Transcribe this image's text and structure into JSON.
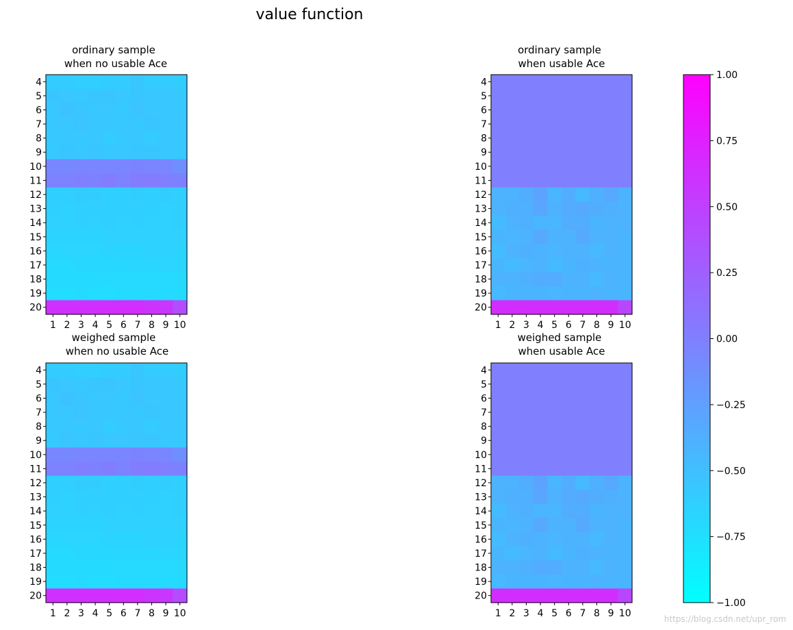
{
  "figure": {
    "suptitle": "value function",
    "watermark": "https://blog.csdn.net/upr_rom"
  },
  "colorbar": {
    "cmap": "cool",
    "vmin": -1.0,
    "vmax": 1.0,
    "ticks": [
      1.0,
      0.75,
      0.5,
      0.25,
      0.0,
      -0.25,
      -0.5,
      -0.75,
      -1.0
    ],
    "tick_labels": [
      "1.00",
      "0.75",
      "0.50",
      "0.25",
      "0.00",
      "−0.25",
      "−0.50",
      "−0.75",
      "−1.00"
    ],
    "color_low": "#00ffff",
    "color_high": "#ff00ff"
  },
  "chart_data": [
    {
      "type": "heatmap",
      "title_line1": "ordinary sample",
      "title_line2": "when no usable Ace",
      "x": [
        "1",
        "2",
        "3",
        "4",
        "5",
        "6",
        "7",
        "8",
        "9",
        "10"
      ],
      "y": [
        "4",
        "5",
        "6",
        "7",
        "8",
        "9",
        "10",
        "11",
        "12",
        "13",
        "14",
        "15",
        "16",
        "17",
        "18",
        "19",
        "20"
      ],
      "values": [
        [
          -0.6,
          -0.6,
          -0.62,
          -0.62,
          -0.6,
          -0.6,
          -0.55,
          -0.6,
          -0.6,
          -0.6
        ],
        [
          -0.55,
          -0.56,
          -0.57,
          -0.55,
          -0.55,
          -0.56,
          -0.55,
          -0.57,
          -0.56,
          -0.57
        ],
        [
          -0.57,
          -0.53,
          -0.55,
          -0.56,
          -0.56,
          -0.58,
          -0.54,
          -0.56,
          -0.57,
          -0.57
        ],
        [
          -0.57,
          -0.56,
          -0.54,
          -0.56,
          -0.57,
          -0.56,
          -0.57,
          -0.55,
          -0.56,
          -0.56
        ],
        [
          -0.58,
          -0.56,
          -0.58,
          -0.56,
          -0.6,
          -0.57,
          -0.56,
          -0.59,
          -0.56,
          -0.57
        ],
        [
          -0.58,
          -0.55,
          -0.56,
          -0.55,
          -0.56,
          -0.56,
          -0.55,
          -0.55,
          -0.57,
          -0.57
        ],
        [
          -0.06,
          -0.07,
          -0.05,
          -0.04,
          -0.05,
          -0.04,
          -0.03,
          -0.04,
          -0.06,
          -0.12
        ],
        [
          -0.02,
          -0.02,
          0.0,
          -0.01,
          0.02,
          -0.02,
          0.02,
          0.03,
          0.0,
          -0.01
        ],
        [
          -0.63,
          -0.63,
          -0.6,
          -0.61,
          -0.63,
          -0.63,
          -0.61,
          -0.63,
          -0.6,
          -0.63
        ],
        [
          -0.63,
          -0.64,
          -0.62,
          -0.63,
          -0.63,
          -0.63,
          -0.62,
          -0.63,
          -0.64,
          -0.63
        ],
        [
          -0.64,
          -0.64,
          -0.63,
          -0.64,
          -0.63,
          -0.64,
          -0.63,
          -0.64,
          -0.64,
          -0.63
        ],
        [
          -0.66,
          -0.66,
          -0.66,
          -0.66,
          -0.64,
          -0.64,
          -0.64,
          -0.64,
          -0.64,
          -0.64
        ],
        [
          -0.68,
          -0.67,
          -0.67,
          -0.67,
          -0.66,
          -0.66,
          -0.66,
          -0.65,
          -0.65,
          -0.66
        ],
        [
          -0.7,
          -0.7,
          -0.69,
          -0.69,
          -0.69,
          -0.69,
          -0.68,
          -0.68,
          -0.67,
          -0.68
        ],
        [
          -0.71,
          -0.71,
          -0.71,
          -0.71,
          -0.7,
          -0.7,
          -0.7,
          -0.7,
          -0.7,
          -0.7
        ],
        [
          -0.73,
          -0.73,
          -0.72,
          -0.73,
          -0.73,
          -0.72,
          -0.72,
          -0.72,
          -0.71,
          -0.72
        ],
        [
          0.62,
          0.62,
          0.63,
          0.63,
          0.64,
          0.64,
          0.64,
          0.6,
          0.58,
          0.4
        ]
      ]
    },
    {
      "type": "heatmap",
      "title_line1": "ordinary sample",
      "title_line2": "when usable Ace",
      "x": [
        "1",
        "2",
        "3",
        "4",
        "5",
        "6",
        "7",
        "8",
        "9",
        "10"
      ],
      "y": [
        "4",
        "5",
        "6",
        "7",
        "8",
        "9",
        "10",
        "11",
        "12",
        "13",
        "14",
        "15",
        "16",
        "17",
        "18",
        "19",
        "20"
      ],
      "values": [
        [
          0.0,
          0.0,
          0.0,
          0.0,
          0.0,
          0.0,
          0.0,
          0.0,
          0.0,
          0.0
        ],
        [
          0.0,
          0.0,
          0.0,
          0.0,
          0.0,
          0.0,
          0.0,
          0.0,
          0.0,
          0.0
        ],
        [
          0.0,
          0.0,
          0.0,
          0.0,
          0.0,
          0.0,
          0.0,
          0.0,
          0.0,
          0.0
        ],
        [
          0.0,
          0.0,
          0.0,
          0.0,
          0.0,
          0.0,
          0.0,
          0.0,
          0.0,
          0.0
        ],
        [
          0.0,
          0.0,
          0.0,
          0.0,
          0.0,
          0.0,
          0.0,
          0.0,
          0.0,
          0.0
        ],
        [
          0.0,
          0.0,
          0.0,
          0.0,
          0.0,
          0.0,
          0.0,
          0.0,
          0.0,
          0.0
        ],
        [
          0.0,
          0.0,
          0.0,
          0.0,
          0.0,
          0.0,
          0.0,
          0.0,
          0.0,
          0.0
        ],
        [
          0.0,
          0.0,
          0.0,
          0.0,
          0.0,
          0.0,
          0.0,
          0.0,
          0.0,
          0.0
        ],
        [
          -0.4,
          -0.4,
          -0.36,
          -0.28,
          -0.43,
          -0.36,
          -0.45,
          -0.38,
          -0.32,
          -0.4
        ],
        [
          -0.4,
          -0.38,
          -0.38,
          -0.3,
          -0.4,
          -0.35,
          -0.33,
          -0.36,
          -0.38,
          -0.4
        ],
        [
          -0.47,
          -0.4,
          -0.38,
          -0.43,
          -0.43,
          -0.36,
          -0.36,
          -0.42,
          -0.4,
          -0.4
        ],
        [
          -0.42,
          -0.43,
          -0.4,
          -0.32,
          -0.4,
          -0.4,
          -0.33,
          -0.4,
          -0.4,
          -0.42
        ],
        [
          -0.47,
          -0.4,
          -0.38,
          -0.4,
          -0.43,
          -0.4,
          -0.4,
          -0.45,
          -0.4,
          -0.42
        ],
        [
          -0.42,
          -0.47,
          -0.43,
          -0.4,
          -0.47,
          -0.42,
          -0.38,
          -0.4,
          -0.42,
          -0.42
        ],
        [
          -0.4,
          -0.4,
          -0.38,
          -0.35,
          -0.35,
          -0.4,
          -0.4,
          -0.45,
          -0.4,
          -0.42
        ],
        [
          -0.45,
          -0.42,
          -0.42,
          -0.42,
          -0.43,
          -0.42,
          -0.42,
          -0.4,
          -0.42,
          -0.42
        ],
        [
          0.65,
          0.65,
          0.65,
          0.65,
          0.65,
          0.65,
          0.65,
          0.65,
          0.65,
          0.45
        ]
      ]
    },
    {
      "type": "heatmap",
      "title_line1": "weighed sample",
      "title_line2": "when no usable Ace",
      "x": [
        "1",
        "2",
        "3",
        "4",
        "5",
        "6",
        "7",
        "8",
        "9",
        "10"
      ],
      "y": [
        "4",
        "5",
        "6",
        "7",
        "8",
        "9",
        "10",
        "11",
        "12",
        "13",
        "14",
        "15",
        "16",
        "17",
        "18",
        "19",
        "20"
      ],
      "values": [
        [
          -0.6,
          -0.6,
          -0.62,
          -0.62,
          -0.6,
          -0.6,
          -0.55,
          -0.6,
          -0.6,
          -0.6
        ],
        [
          -0.55,
          -0.56,
          -0.57,
          -0.55,
          -0.55,
          -0.56,
          -0.55,
          -0.57,
          -0.56,
          -0.57
        ],
        [
          -0.57,
          -0.53,
          -0.55,
          -0.56,
          -0.56,
          -0.58,
          -0.54,
          -0.56,
          -0.57,
          -0.57
        ],
        [
          -0.57,
          -0.56,
          -0.54,
          -0.56,
          -0.57,
          -0.56,
          -0.57,
          -0.55,
          -0.56,
          -0.56
        ],
        [
          -0.58,
          -0.56,
          -0.58,
          -0.56,
          -0.6,
          -0.57,
          -0.56,
          -0.59,
          -0.56,
          -0.57
        ],
        [
          -0.58,
          -0.55,
          -0.56,
          -0.55,
          -0.56,
          -0.56,
          -0.55,
          -0.55,
          -0.57,
          -0.57
        ],
        [
          -0.06,
          -0.07,
          -0.05,
          -0.04,
          -0.05,
          -0.04,
          -0.03,
          -0.04,
          -0.06,
          -0.12
        ],
        [
          -0.02,
          -0.02,
          0.0,
          -0.01,
          0.02,
          -0.02,
          0.02,
          0.03,
          0.0,
          -0.01
        ],
        [
          -0.63,
          -0.63,
          -0.6,
          -0.61,
          -0.63,
          -0.63,
          -0.61,
          -0.63,
          -0.6,
          -0.63
        ],
        [
          -0.63,
          -0.64,
          -0.62,
          -0.63,
          -0.63,
          -0.63,
          -0.62,
          -0.63,
          -0.64,
          -0.63
        ],
        [
          -0.64,
          -0.64,
          -0.63,
          -0.64,
          -0.63,
          -0.64,
          -0.63,
          -0.64,
          -0.64,
          -0.63
        ],
        [
          -0.66,
          -0.66,
          -0.66,
          -0.66,
          -0.64,
          -0.64,
          -0.64,
          -0.64,
          -0.64,
          -0.64
        ],
        [
          -0.68,
          -0.67,
          -0.67,
          -0.67,
          -0.66,
          -0.66,
          -0.66,
          -0.65,
          -0.65,
          -0.66
        ],
        [
          -0.7,
          -0.7,
          -0.69,
          -0.69,
          -0.69,
          -0.69,
          -0.68,
          -0.68,
          -0.67,
          -0.68
        ],
        [
          -0.71,
          -0.71,
          -0.71,
          -0.71,
          -0.7,
          -0.7,
          -0.7,
          -0.7,
          -0.7,
          -0.7
        ],
        [
          -0.73,
          -0.73,
          -0.72,
          -0.73,
          -0.73,
          -0.72,
          -0.72,
          -0.72,
          -0.71,
          -0.72
        ],
        [
          0.62,
          0.62,
          0.63,
          0.63,
          0.64,
          0.64,
          0.64,
          0.6,
          0.58,
          0.4
        ]
      ]
    },
    {
      "type": "heatmap",
      "title_line1": "weighed sample",
      "title_line2": "when usable Ace",
      "x": [
        "1",
        "2",
        "3",
        "4",
        "5",
        "6",
        "7",
        "8",
        "9",
        "10"
      ],
      "y": [
        "4",
        "5",
        "6",
        "7",
        "8",
        "9",
        "10",
        "11",
        "12",
        "13",
        "14",
        "15",
        "16",
        "17",
        "18",
        "19",
        "20"
      ],
      "values": [
        [
          0.0,
          0.0,
          0.0,
          0.0,
          0.0,
          0.0,
          0.0,
          0.0,
          0.0,
          0.0
        ],
        [
          0.0,
          0.0,
          0.0,
          0.0,
          0.0,
          0.0,
          0.0,
          0.0,
          0.0,
          0.0
        ],
        [
          0.0,
          0.0,
          0.0,
          0.0,
          0.0,
          0.0,
          0.0,
          0.0,
          0.0,
          0.0
        ],
        [
          0.0,
          0.0,
          0.0,
          0.0,
          0.0,
          0.0,
          0.0,
          0.0,
          0.0,
          0.0
        ],
        [
          0.0,
          0.0,
          0.0,
          0.0,
          0.0,
          0.0,
          0.0,
          0.0,
          0.0,
          0.0
        ],
        [
          0.0,
          0.0,
          0.0,
          0.0,
          0.0,
          0.0,
          0.0,
          0.0,
          0.0,
          0.0
        ],
        [
          0.0,
          0.0,
          0.0,
          0.0,
          0.0,
          0.0,
          0.0,
          0.0,
          0.0,
          0.0
        ],
        [
          0.0,
          0.0,
          0.0,
          0.0,
          0.0,
          0.0,
          0.0,
          0.0,
          0.0,
          0.0
        ],
        [
          -0.4,
          -0.4,
          -0.36,
          -0.28,
          -0.43,
          -0.36,
          -0.45,
          -0.38,
          -0.32,
          -0.4
        ],
        [
          -0.4,
          -0.38,
          -0.38,
          -0.3,
          -0.4,
          -0.35,
          -0.33,
          -0.36,
          -0.38,
          -0.4
        ],
        [
          -0.47,
          -0.4,
          -0.38,
          -0.43,
          -0.43,
          -0.36,
          -0.36,
          -0.42,
          -0.4,
          -0.4
        ],
        [
          -0.42,
          -0.43,
          -0.4,
          -0.32,
          -0.4,
          -0.4,
          -0.33,
          -0.4,
          -0.4,
          -0.42
        ],
        [
          -0.47,
          -0.4,
          -0.38,
          -0.4,
          -0.43,
          -0.4,
          -0.4,
          -0.45,
          -0.4,
          -0.42
        ],
        [
          -0.42,
          -0.47,
          -0.43,
          -0.4,
          -0.47,
          -0.42,
          -0.38,
          -0.4,
          -0.42,
          -0.42
        ],
        [
          -0.4,
          -0.4,
          -0.38,
          -0.35,
          -0.35,
          -0.4,
          -0.4,
          -0.45,
          -0.4,
          -0.42
        ],
        [
          -0.45,
          -0.42,
          -0.42,
          -0.42,
          -0.43,
          -0.42,
          -0.42,
          -0.4,
          -0.42,
          -0.42
        ],
        [
          0.65,
          0.65,
          0.65,
          0.65,
          0.65,
          0.65,
          0.65,
          0.65,
          0.65,
          0.45
        ]
      ]
    }
  ]
}
